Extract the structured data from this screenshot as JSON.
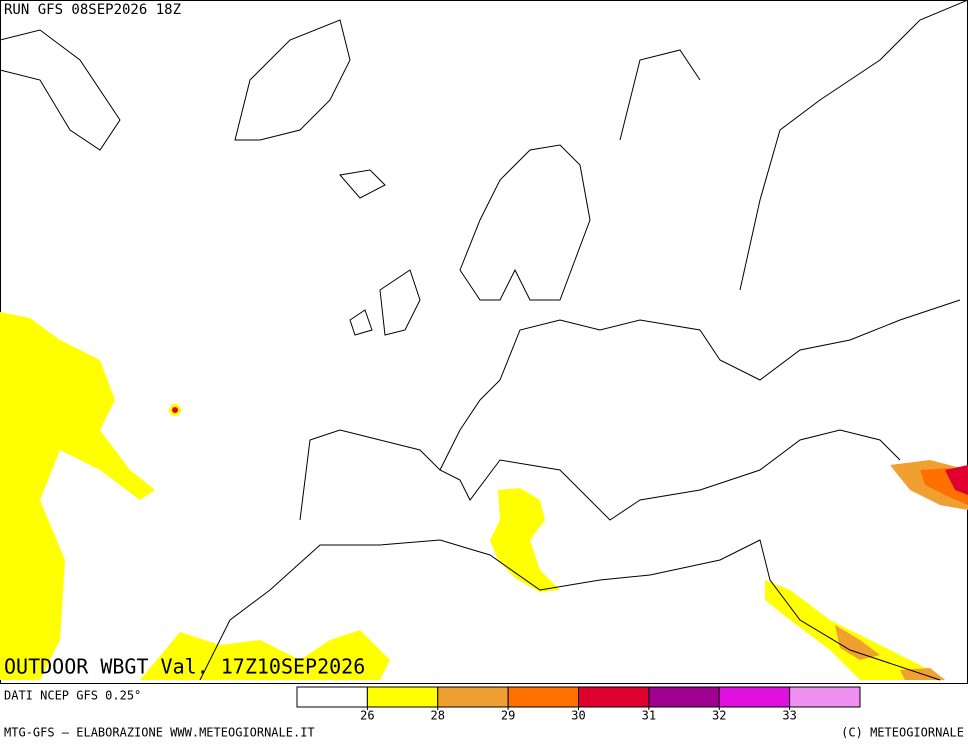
{
  "header": {
    "run": "RUN GFS 08SEP2026 18Z"
  },
  "map": {
    "title": "OUTDOOR WBGT Val. 17Z10SEP2026"
  },
  "footer": {
    "source": "DATI NCEP GFS 0.25°",
    "credit": "MTG-GFS — ELABORAZIONE WWW.METEOGIORNALE.IT",
    "copyright": "(C) METEOGIORNALE"
  },
  "legend": {
    "colors": [
      "#ffffff",
      "#ffff00",
      "#f0a030",
      "#ff7000",
      "#e00030",
      "#a00090",
      "#e010e0",
      "#f090f0"
    ],
    "thresholds": [
      26,
      28,
      29,
      30,
      31,
      32,
      33
    ]
  }
}
